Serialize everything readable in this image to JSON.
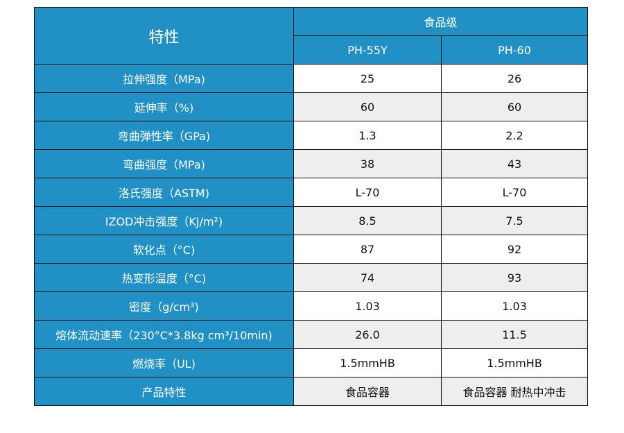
{
  "header": {
    "property": "特性",
    "group": "食品级",
    "products": [
      "PH-55Y",
      "PH-60"
    ]
  },
  "colors": {
    "header_bg": "#2190c4",
    "row_alt_bg": "#eeeeef"
  },
  "rows": [
    {
      "label": "拉伸强度（MPa)",
      "values": [
        "25",
        "26"
      ]
    },
    {
      "label": "延伸率（%)",
      "values": [
        "60",
        "60"
      ]
    },
    {
      "label": "弯曲弹性率（GPa)",
      "values": [
        "1.3",
        "2.2"
      ]
    },
    {
      "label": "弯曲强度（MPa)",
      "values": [
        "38",
        "43"
      ]
    },
    {
      "label": "洛氏强度（ASTM)",
      "values": [
        "L-70",
        "L-70"
      ]
    },
    {
      "label": "IZOD冲击强度（KJ/m²)",
      "values": [
        "8.5",
        "7.5"
      ]
    },
    {
      "label": "软化点（°C)",
      "values": [
        "87",
        "92"
      ]
    },
    {
      "label": "热变形温度（°C)",
      "values": [
        "74",
        "93"
      ]
    },
    {
      "label": "密度（g/cm³)",
      "values": [
        "1.03",
        "1.03"
      ]
    },
    {
      "label": "熔体流动速率（230°C*3.8kg cm³/10min)",
      "values": [
        "26.0",
        "11.5"
      ]
    },
    {
      "label": "燃烧率（UL)",
      "values": [
        "1.5mmHB",
        "1.5mmHB"
      ]
    },
    {
      "label": "产品特性",
      "values": [
        "食品容器",
        "食品容器 耐热中冲击"
      ]
    }
  ]
}
